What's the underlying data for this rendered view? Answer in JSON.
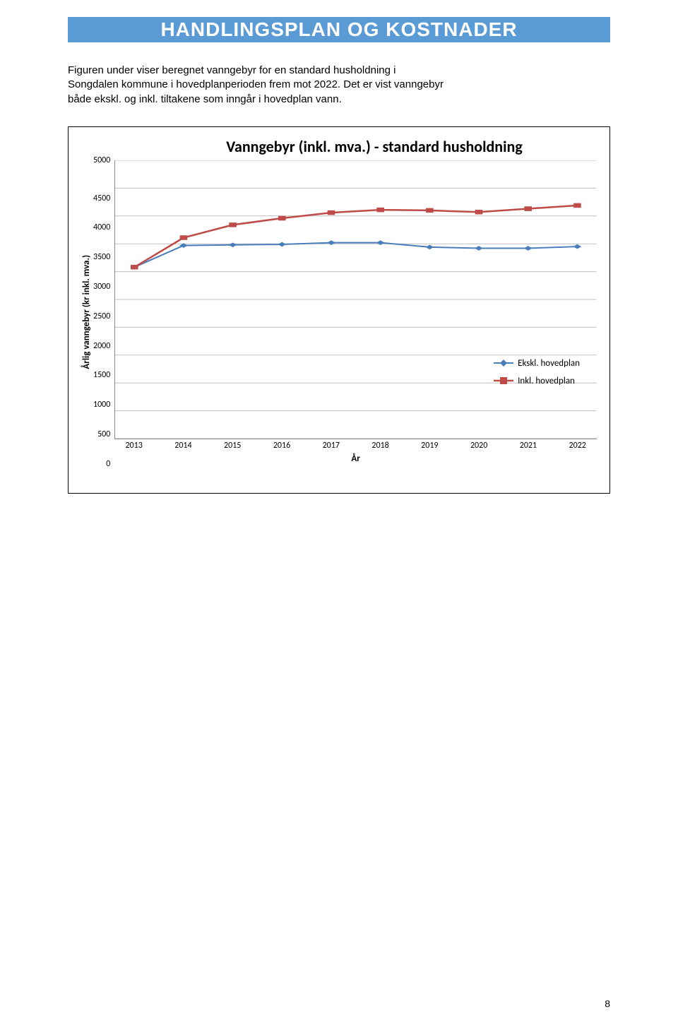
{
  "header": {
    "title": "HANDLINGSPLAN OG KOSTNADER"
  },
  "intro": {
    "text": "Figuren under viser beregnet vanngebyr for en standard husholdning i Songdalen kommune i hovedplanperioden frem mot 2022. Det er vist vanngebyr både ekskl. og inkl. tiltakene som inngår i hovedplan vann."
  },
  "lineChart": {
    "type": "line",
    "title": "Vanngebyr (inkl. mva.) - standard husholdning",
    "title_fontsize": 22,
    "xlabel": "År",
    "ylabel": "Årlig vanngebyr (kr inkl. mva.)",
    "label_fontsize": 13,
    "xlim": [
      2013,
      2022
    ],
    "ylim": [
      0,
      5000
    ],
    "ytick_step": 500,
    "xticks": [
      2013,
      2014,
      2015,
      2016,
      2017,
      2018,
      2019,
      2020,
      2021,
      2022
    ],
    "yticks": [
      5000,
      4500,
      4000,
      3500,
      3000,
      2500,
      2000,
      1500,
      1000,
      500,
      0
    ],
    "grid_color": "#bfbfbf",
    "axis_color": "#888888",
    "tick_color": "#888888",
    "background_color": "#ffffff",
    "tick_fontsize": 12,
    "series": [
      {
        "name": "Ekskl. hovedplan",
        "color": "#4a7ebb",
        "marker": "diamond",
        "marker_size": 7,
        "line_width": 2,
        "x": [
          2013,
          2014,
          2015,
          2016,
          2017,
          2018,
          2019,
          2020,
          2021,
          2022
        ],
        "y": [
          3080,
          3470,
          3480,
          3490,
          3520,
          3520,
          3440,
          3420,
          3420,
          3450
        ]
      },
      {
        "name": "Inkl. hovedplan",
        "color": "#be4b48",
        "marker": "square",
        "marker_size": 7,
        "line_width": 2.5,
        "x": [
          2013,
          2014,
          2015,
          2016,
          2017,
          2018,
          2019,
          2020,
          2021,
          2022
        ],
        "y": [
          3080,
          3610,
          3840,
          3960,
          4060,
          4110,
          4100,
          4070,
          4130,
          4190
        ]
      }
    ],
    "legend_position": "right"
  },
  "page": {
    "number": "8"
  }
}
